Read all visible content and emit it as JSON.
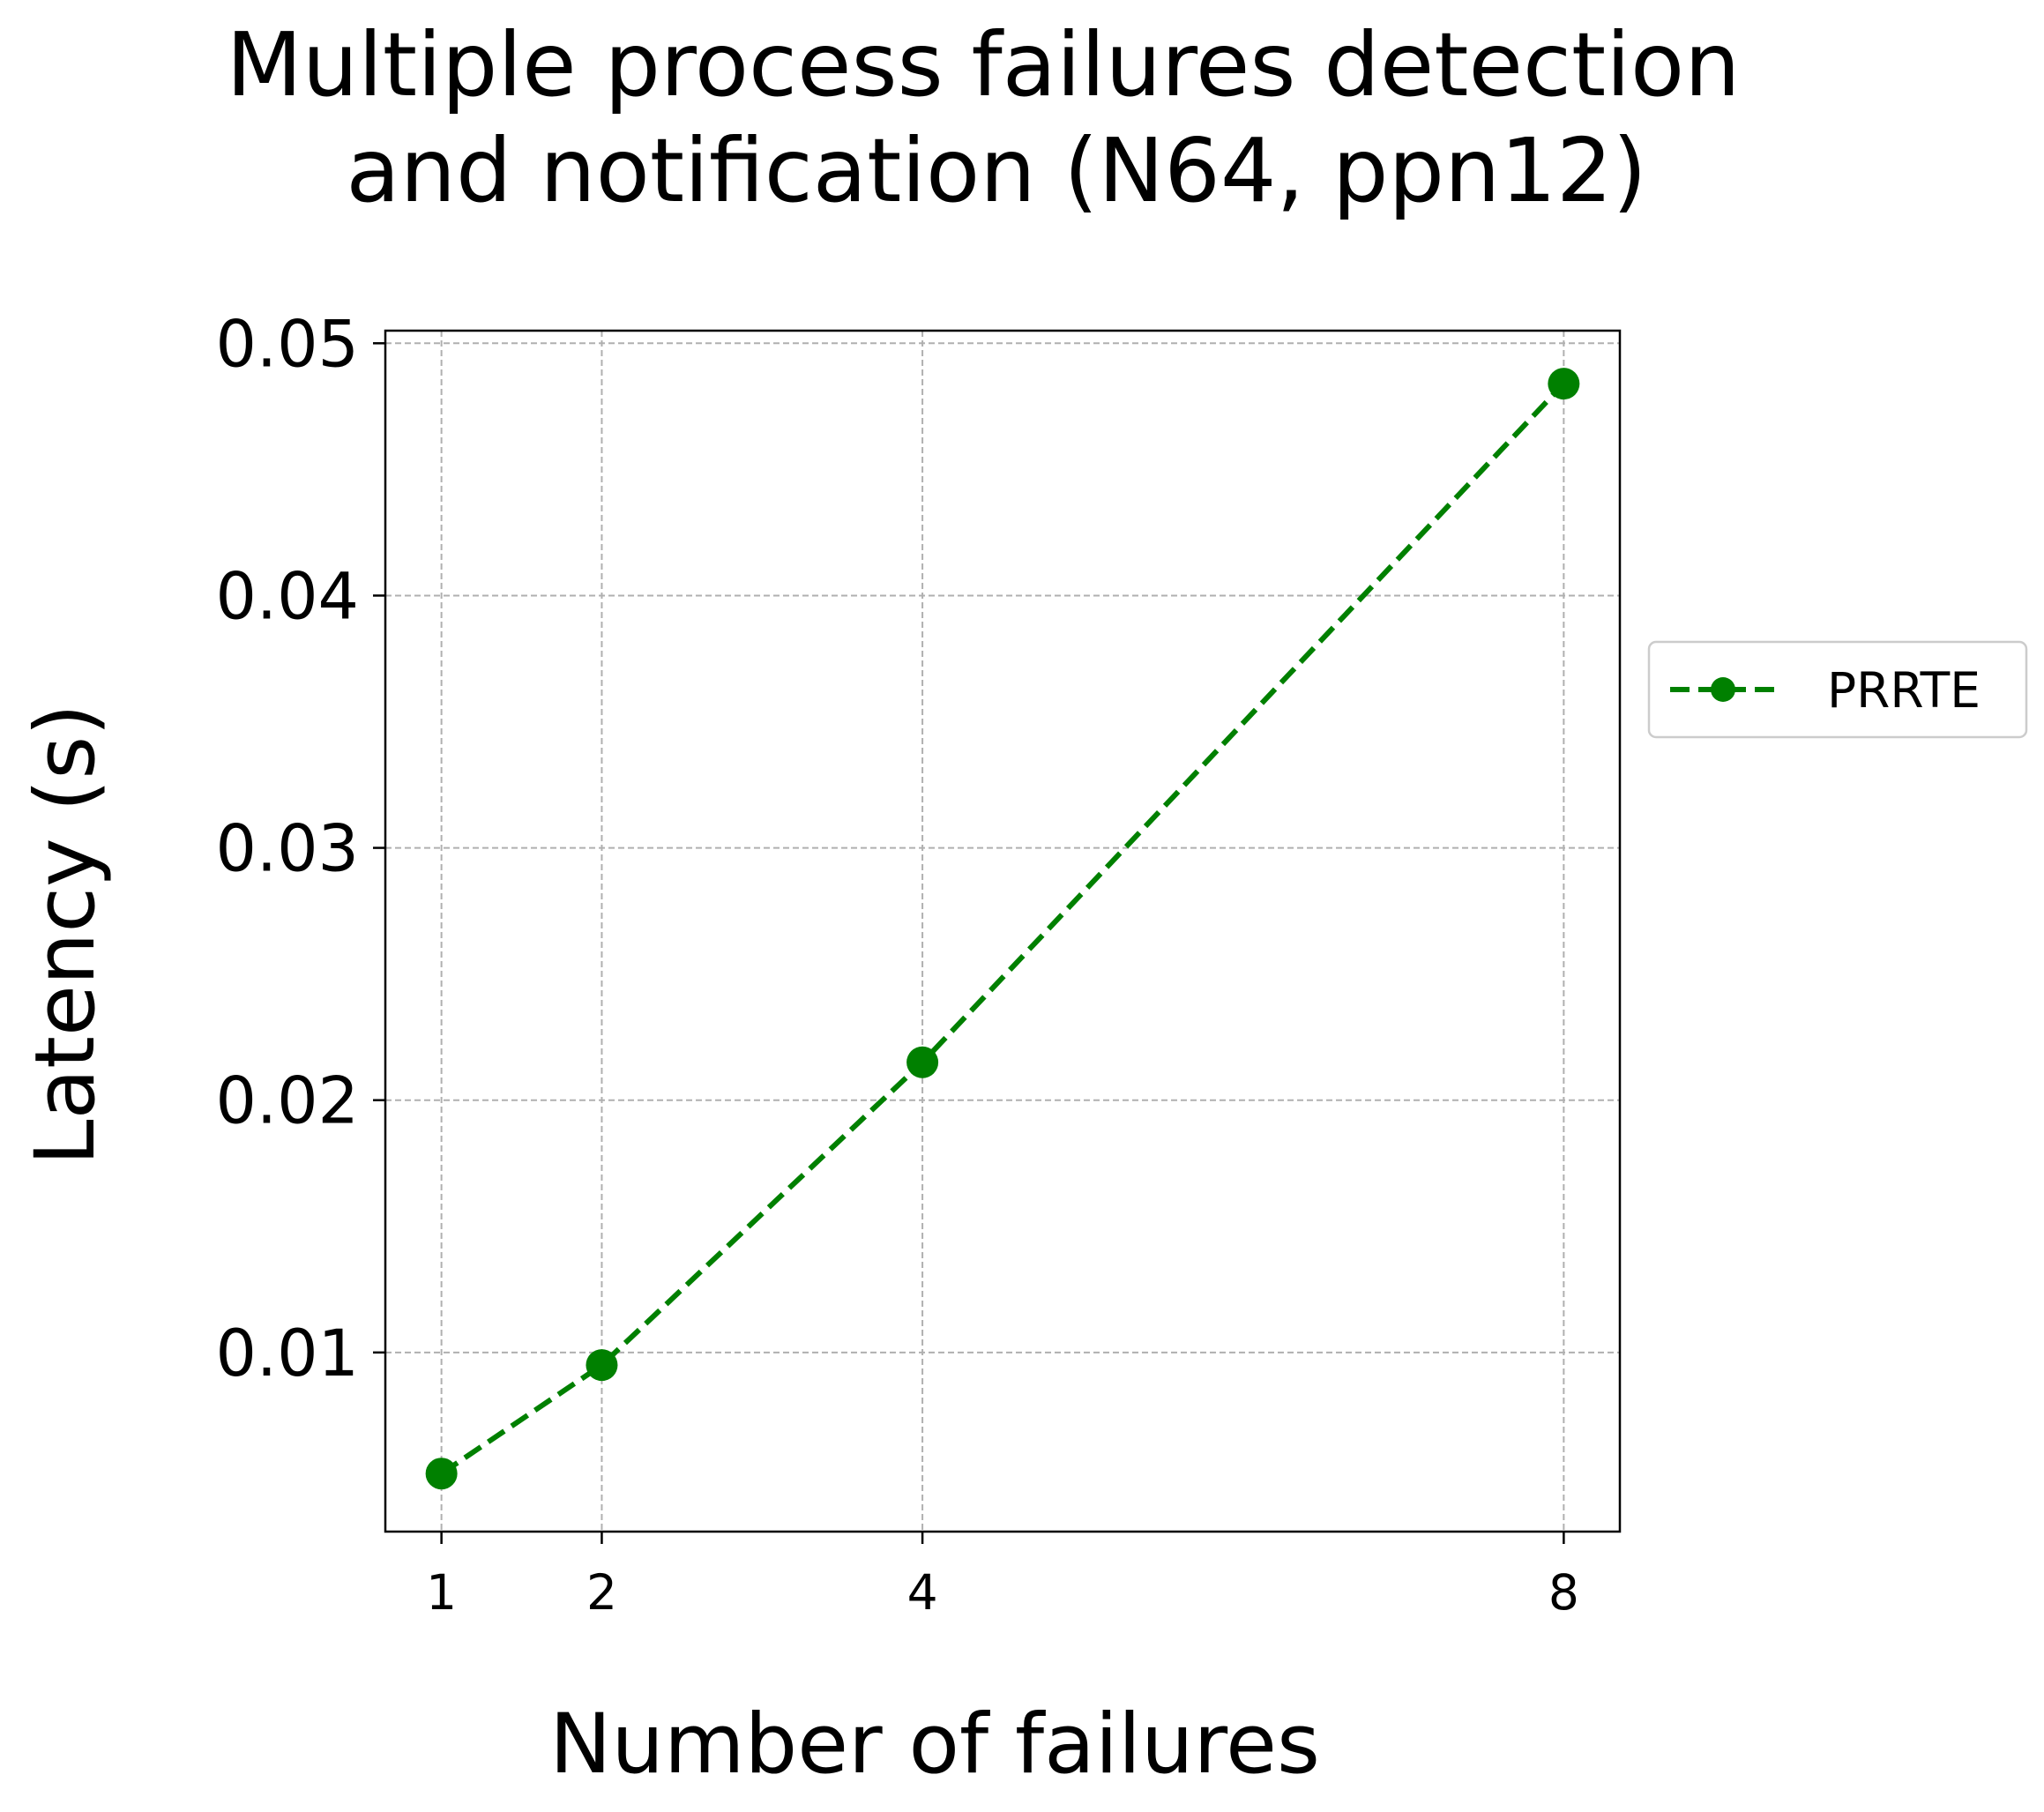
{
  "chart_data": {
    "type": "line",
    "title_lines": [
      "Multiple process failures detection",
      "and notification (N64, ppn12)"
    ],
    "xlabel": "Number of failures",
    "ylabel": "Latency (s)",
    "x": [
      1,
      2,
      4,
      8
    ],
    "x_tick_labels": [
      "1",
      "2",
      "4",
      "8"
    ],
    "xlim": [
      0.65,
      8.35
    ],
    "y_ticks": [
      0.01,
      0.02,
      0.03,
      0.04,
      0.05
    ],
    "y_tick_labels": [
      "0.01",
      "0.02",
      "0.03",
      "0.04",
      "0.05"
    ],
    "ylim": [
      0.0029,
      0.0505
    ],
    "grid": true,
    "legend_position": "outside-right",
    "series": [
      {
        "name": "PRRTE",
        "values": [
          0.0052,
          0.0095,
          0.0215,
          0.0484
        ],
        "color": "#008000",
        "line_style": "dashed",
        "marker": "circle"
      }
    ]
  }
}
